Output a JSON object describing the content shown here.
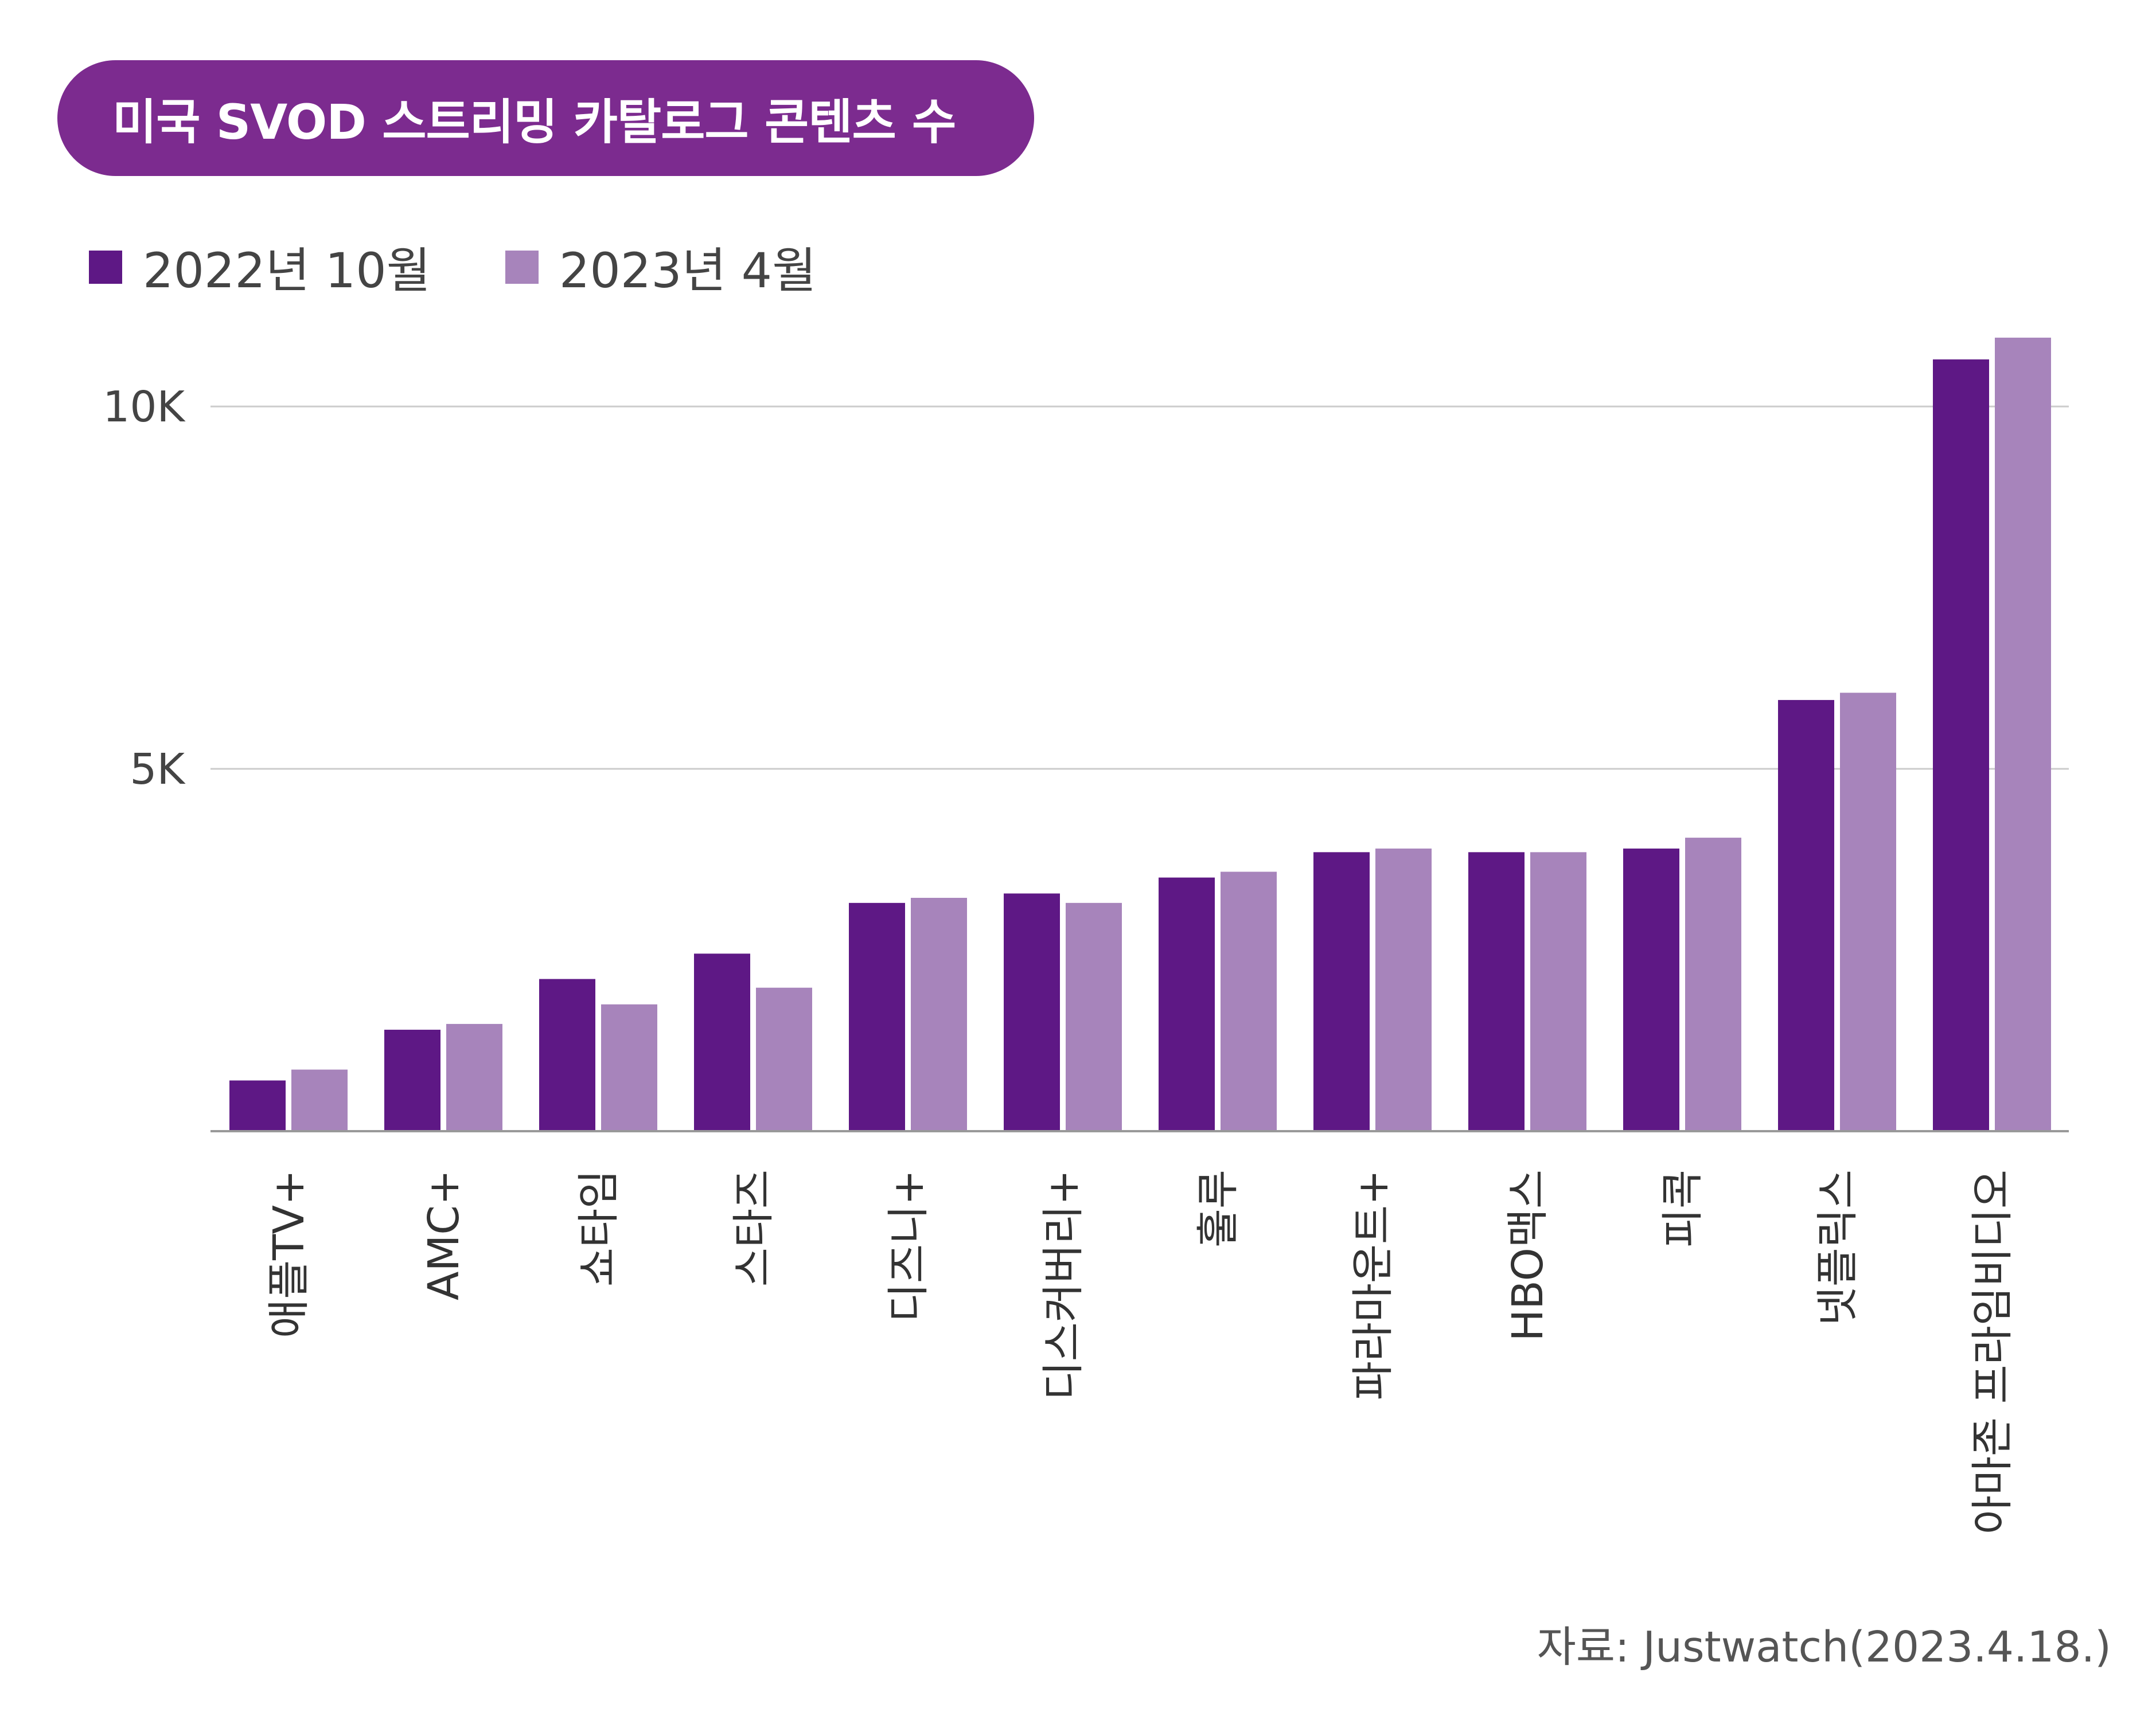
{
  "title": "미국 SVOD 스트리밍 카탈로그 콘텐츠 수",
  "source": "자료: Justwatch(2023.4.18.)",
  "colors": {
    "title_bg": "#7c2b8f",
    "series1": "#5e1885",
    "series2": "#a784bb",
    "grid": "#cccccc",
    "axis": "#999999"
  },
  "chart_data": {
    "type": "bar",
    "categories": [
      "애플TV+",
      "AMC+",
      "쇼타임",
      "스타즈",
      "디즈니+",
      "디스커버리+",
      "훌루",
      "파라마운트+",
      "HBO맥스",
      "피콕",
      "넷플릭스",
      "아마존 프라임비디오"
    ],
    "series": [
      {
        "name": "2022년 10월",
        "values": [
          700,
          1400,
          2100,
          2450,
          3150,
          3280,
          3500,
          3850,
          3850,
          3900,
          5950,
          10650
        ]
      },
      {
        "name": "2023년 4월",
        "values": [
          850,
          1480,
          1750,
          1980,
          3220,
          3150,
          3580,
          3900,
          3850,
          4050,
          6050,
          10950
        ]
      }
    ],
    "yticks": [
      {
        "value": 5000,
        "label": "5K"
      },
      {
        "value": 10000,
        "label": "10K"
      }
    ],
    "ylim": [
      0,
      11000
    ],
    "grid": true,
    "legend": "top-left"
  }
}
